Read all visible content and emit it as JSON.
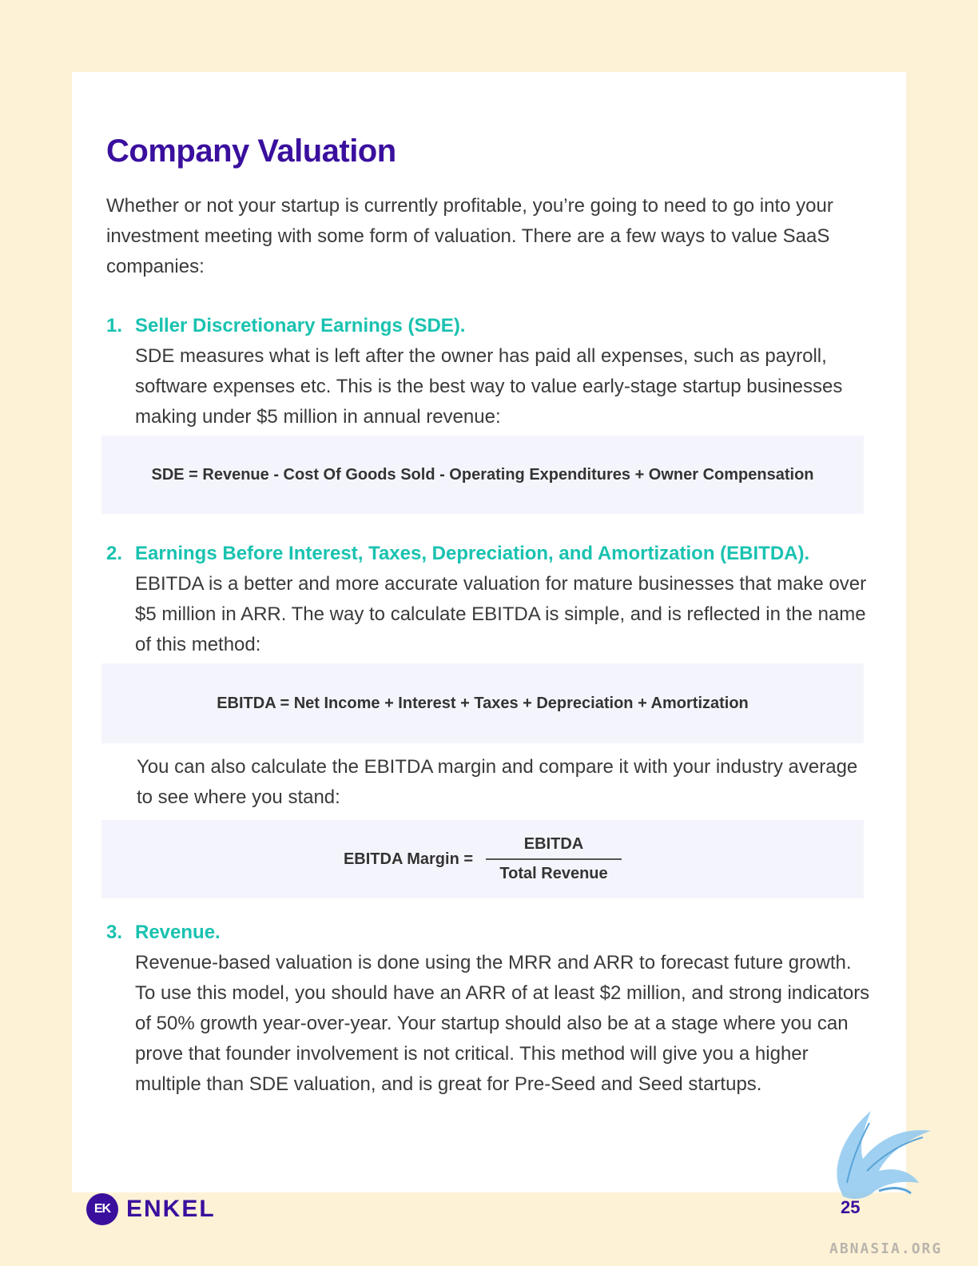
{
  "page": {
    "title": "Company Valuation",
    "intro": "Whether or not your startup is currently profitable, you’re going to need to go into your investment meeting with some form of valuation. There are a few ways to value SaaS companies:",
    "page_number": "25"
  },
  "methods": [
    {
      "number": "1.",
      "heading": "Seller Discretionary Earnings (SDE).",
      "description": "SDE measures what is left after the owner has paid all expenses, such as payroll, software expenses etc. This is the best way to value early-stage startup businesses making under $5 million in annual revenue:",
      "formula": "SDE = Revenue - Cost Of Goods Sold - Operating Expenditures + Owner Compensation"
    },
    {
      "number": "2.",
      "heading": "Earnings Before Interest, Taxes, Depreciation, and Amortization (EBITDA).",
      "description": "EBITDA is a better and more accurate valuation for mature businesses that make over $5 million in ARR. The way to calculate EBITDA is simple, and is reflected in the name of this method:",
      "formula": "EBITDA = Net Income + Interest + Taxes + Depreciation + Amortization",
      "extra_text": "You can also calculate the EBITDA margin and compare it with your industry average to see where you stand:",
      "margin_formula": {
        "label": "EBITDA Margin =",
        "numerator": "EBITDA",
        "denominator": "Total Revenue"
      }
    },
    {
      "number": "3.",
      "heading": "Revenue.",
      "description": "Revenue-based valuation is done using the MRR and ARR to forecast future growth. To use this model, you should have an ARR of at least $2 million, and strong indicators of 50% growth year-over-year. Your startup should also be at a stage where you can prove that founder involvement is not critical. This method will give you a higher multiple than SDE valuation, and is great for Pre-Seed and Seed startups."
    }
  ],
  "footer": {
    "logo_mark": "EK",
    "logo_text": "ENKEL"
  },
  "watermark": {
    "text": "ABNASIA.ORG"
  },
  "colors": {
    "background": "#fef2d6",
    "title": "#3a0f9e",
    "heading_accent": "#19c2b0",
    "formula_box": "#f4f5fc"
  }
}
